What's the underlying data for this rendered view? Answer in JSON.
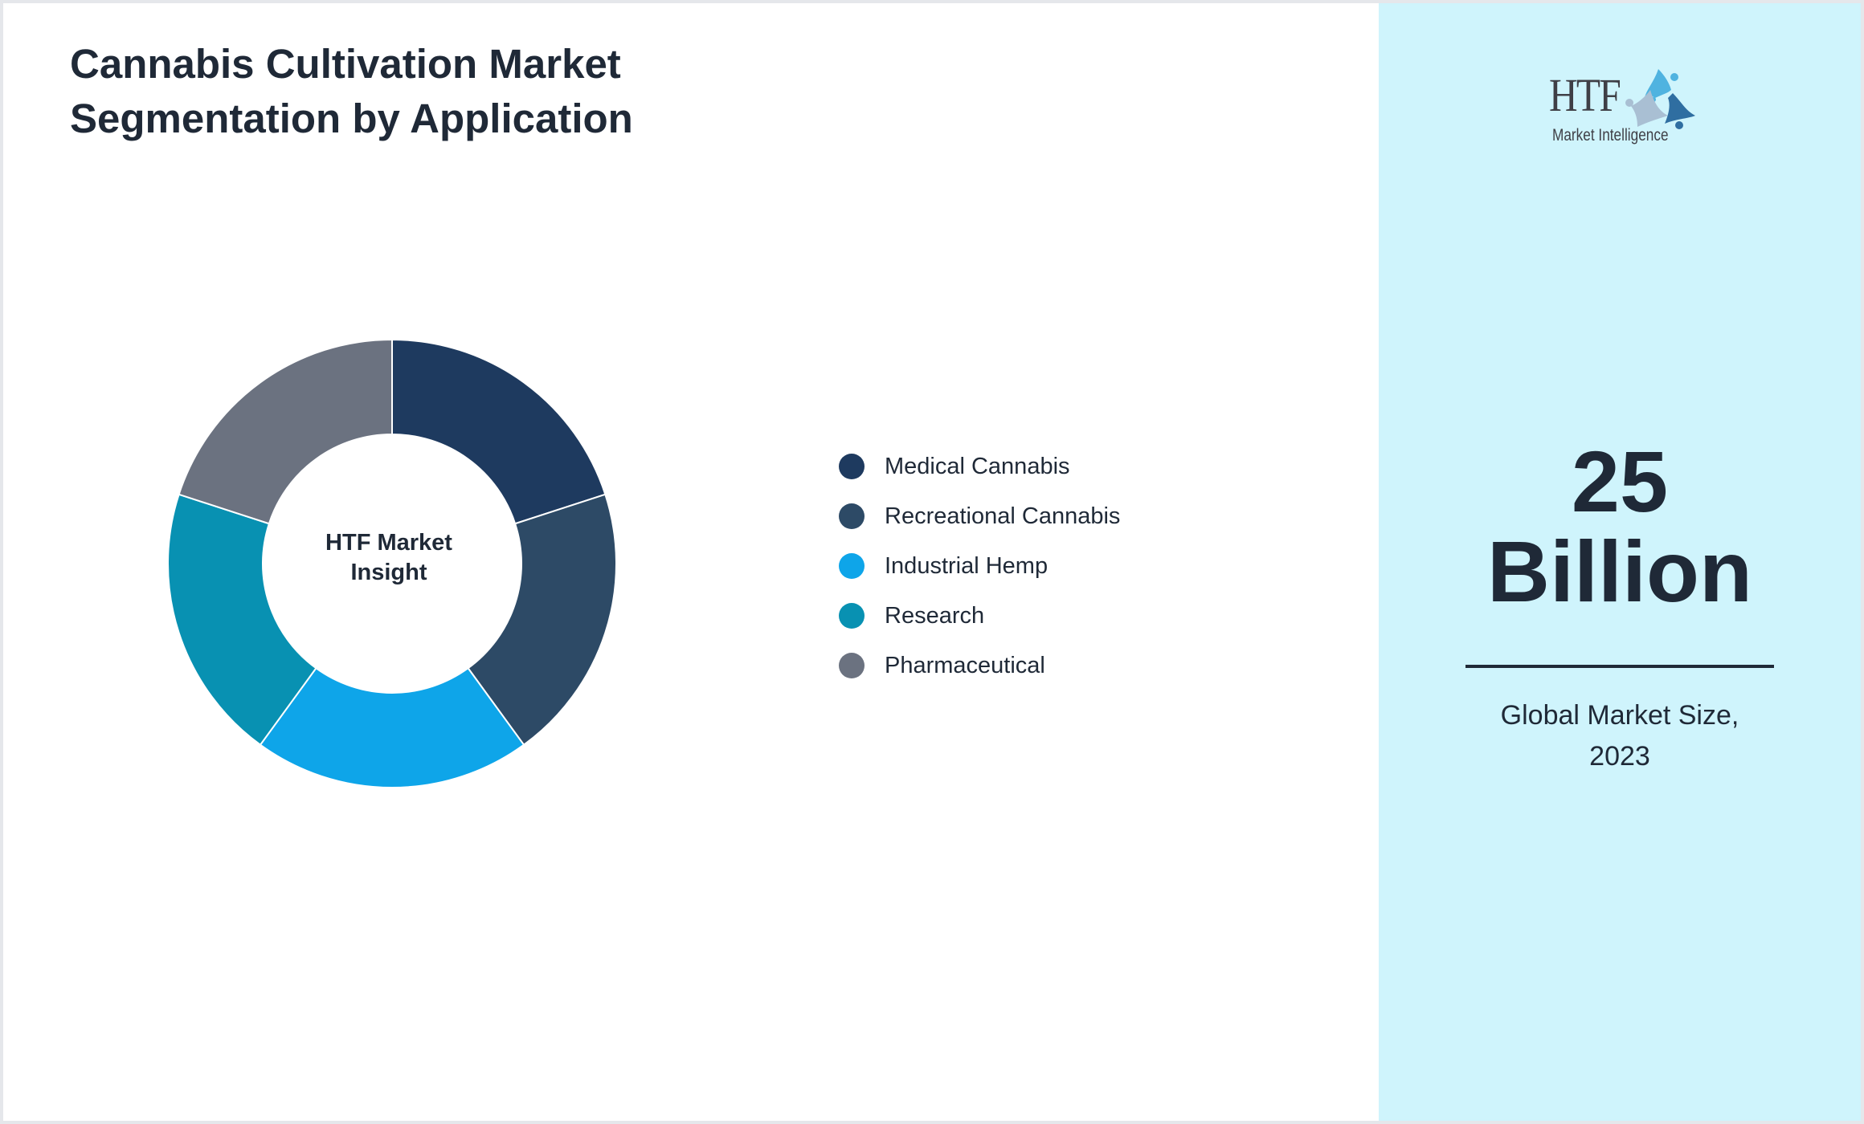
{
  "header": {
    "title_line1": "Cannabis Cultivation Market",
    "title_line2": "Segmentation by Application"
  },
  "donut": {
    "center_line1": "HTF Market",
    "center_line2": "Insight"
  },
  "legend": {
    "items": [
      {
        "label": "Medical Cannabis",
        "color": "#1e3a5f"
      },
      {
        "label": "Recreational Cannabis",
        "color": "#2d4a66"
      },
      {
        "label": "Industrial Hemp",
        "color": "#0ea5e9"
      },
      {
        "label": "Research",
        "color": "#0891b2"
      },
      {
        "label": "Pharmaceutical",
        "color": "#6b7280"
      }
    ]
  },
  "side_panel": {
    "logo_text": "HTF",
    "logo_subtext": "Market Intelligence",
    "stat_number": "25",
    "stat_unit": "Billion",
    "caption_line1": "Global Market Size,",
    "caption_line2": "2023",
    "background": "#cff4fc"
  },
  "chart_data": {
    "type": "pie",
    "subtype": "donut",
    "title": "Cannabis Cultivation Market Segmentation by Application",
    "center_label": "HTF Market Insight",
    "categories": [
      "Medical Cannabis",
      "Recreational Cannabis",
      "Industrial Hemp",
      "Research",
      "Pharmaceutical"
    ],
    "values": [
      20,
      20,
      20,
      20,
      20
    ],
    "colors": [
      "#1e3a5f",
      "#2d4a66",
      "#0ea5e9",
      "#0891b2",
      "#6b7280"
    ],
    "start_angle_deg": 0,
    "direction": "clockwise",
    "legend_position": "right",
    "annotations": [
      "25 Billion",
      "Global Market Size, 2023"
    ]
  }
}
